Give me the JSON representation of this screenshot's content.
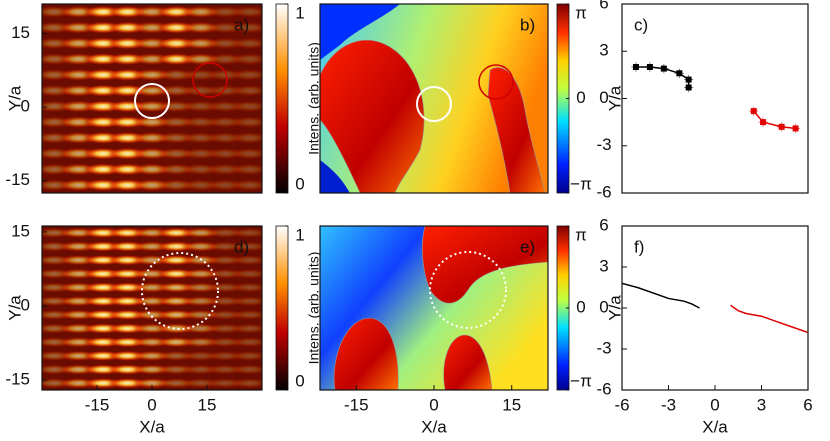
{
  "chart_data": [
    {
      "type": "heatmap",
      "colormap": "hot",
      "label": "a)",
      "ylabel": "Y/a",
      "xlim": [
        -30,
        30
      ],
      "ylim": [
        -17.5,
        21
      ],
      "yticks": [
        -15,
        0,
        15
      ],
      "colorbar": {
        "label": "Intens. (arb. units)",
        "lim": [
          0,
          1
        ],
        "ticks": [
          0,
          1
        ]
      }
    },
    {
      "type": "heatmap",
      "colormap": "jet",
      "label": "b)",
      "xlim": [
        -22,
        22
      ],
      "ylim": [
        -17.5,
        21
      ],
      "colorbar": {
        "lim": [
          -3.14159,
          3.14159
        ],
        "ticks": [
          {
            "value": -3.14159,
            "label": "−π"
          },
          0,
          {
            "value": 3.14159,
            "label": "π"
          }
        ]
      }
    },
    {
      "type": "scatter",
      "label": "c)",
      "ylabel": "Y/a",
      "xlim": [
        -6,
        6
      ],
      "ylim": [
        -6,
        6
      ],
      "yticks": [
        -6,
        -3,
        0,
        3,
        6
      ],
      "series": [
        {
          "color": "#000000",
          "x": [
            -5.1,
            -4.2,
            -3.3,
            -2.3,
            -1.7,
            -1.7
          ],
          "values": [
            2.0,
            2.0,
            1.9,
            1.6,
            1.2,
            0.7
          ],
          "xerr": [
            0.3,
            0.3,
            0.3,
            0.3,
            0.3,
            0.3
          ],
          "yerr": [
            0.3,
            0.3,
            0.3,
            0.3,
            0.3,
            0.3
          ]
        },
        {
          "color": "#e00000",
          "x": [
            2.5,
            3.1,
            4.3,
            5.2
          ],
          "values": [
            -0.8,
            -1.5,
            -1.8,
            -1.9
          ],
          "xerr": [
            0.3,
            0.3,
            0.3,
            0.3
          ],
          "yerr": [
            0.3,
            0.3,
            0.3,
            0.3
          ]
        }
      ]
    },
    {
      "type": "heatmap",
      "colormap": "hot",
      "label": "d)",
      "ylabel": "Y/a",
      "xlabel": "X/a",
      "xlim": [
        -30,
        30
      ],
      "ylim": [
        -17,
        16.2
      ],
      "xticks": [
        -15,
        0,
        15
      ],
      "yticks": [
        -15,
        0,
        15
      ],
      "colorbar": {
        "label": "Intens. (arb. units)",
        "lim": [
          0,
          1
        ],
        "ticks": [
          0,
          1
        ]
      }
    },
    {
      "type": "heatmap",
      "colormap": "jet",
      "label": "e)",
      "xlabel": "X/a",
      "xlim": [
        -22,
        22
      ],
      "ylim": [
        -17,
        16.2
      ],
      "xticks": [
        -15,
        0,
        15
      ],
      "colorbar": {
        "lim": [
          -3.14159,
          3.14159
        ],
        "ticks": [
          {
            "value": -3.14159,
            "label": "−π"
          },
          0,
          {
            "value": 3.14159,
            "label": "π"
          }
        ]
      }
    },
    {
      "type": "line",
      "label": "f)",
      "ylabel": "Y/a",
      "xlabel": "X/a",
      "xlim": [
        -6,
        6
      ],
      "ylim": [
        -6,
        6
      ],
      "xticks": [
        -6,
        -3,
        0,
        3,
        6
      ],
      "yticks": [
        -6,
        -3,
        0,
        3,
        6
      ],
      "series": [
        {
          "color": "#000000",
          "x": [
            -6,
            -5,
            -4,
            -3,
            -2,
            -1.5,
            -1
          ],
          "values": [
            1.8,
            1.5,
            1.1,
            0.7,
            0.5,
            0.3,
            0.0
          ]
        },
        {
          "color": "#e00000",
          "x": [
            1,
            1.5,
            2,
            3,
            4,
            5,
            6
          ],
          "values": [
            0.2,
            -0.2,
            -0.4,
            -0.6,
            -1.0,
            -1.4,
            -1.8
          ]
        }
      ]
    }
  ]
}
